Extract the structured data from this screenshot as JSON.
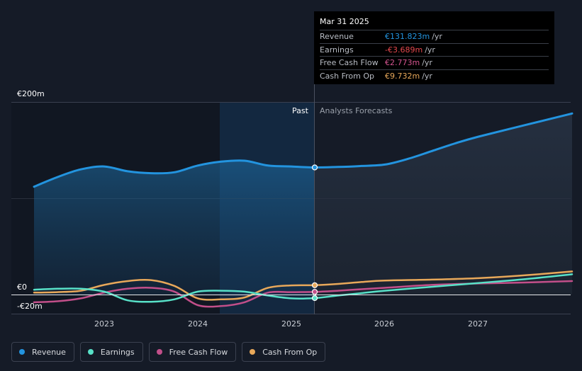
{
  "chart_data": {
    "type": "line",
    "y_axis": {
      "labels": [
        "€200m",
        "€0",
        "-€20m"
      ],
      "ylim": [
        -20,
        200
      ]
    },
    "x_axis": {
      "ticks": [
        "2023",
        "2024",
        "2025",
        "2026",
        "2027"
      ]
    },
    "regions": {
      "past": "Past",
      "forecast": "Analysts Forecasts"
    },
    "series": [
      {
        "name": "Revenue",
        "color": "#2394df",
        "points": [
          [
            2022.25,
            112
          ],
          [
            2022.5,
            122
          ],
          [
            2022.75,
            130
          ],
          [
            2023.0,
            133
          ],
          [
            2023.25,
            128
          ],
          [
            2023.5,
            126
          ],
          [
            2023.75,
            127
          ],
          [
            2024.0,
            134
          ],
          [
            2024.25,
            138
          ],
          [
            2024.5,
            139
          ],
          [
            2024.75,
            134
          ],
          [
            2025.0,
            133
          ],
          [
            2025.25,
            132
          ],
          [
            2025.5,
            132.5
          ],
          [
            2025.75,
            133.5
          ],
          [
            2026.0,
            135
          ],
          [
            2026.25,
            141
          ],
          [
            2026.5,
            149
          ],
          [
            2026.75,
            157
          ],
          [
            2027.0,
            164
          ],
          [
            2027.5,
            176
          ],
          [
            2028.0,
            188
          ]
        ]
      },
      {
        "name": "Earnings",
        "color": "#58e1c8",
        "points": [
          [
            2022.25,
            5
          ],
          [
            2022.5,
            6
          ],
          [
            2022.75,
            6
          ],
          [
            2023.0,
            3
          ],
          [
            2023.25,
            -6
          ],
          [
            2023.5,
            -7.5
          ],
          [
            2023.75,
            -5
          ],
          [
            2024.0,
            3
          ],
          [
            2024.25,
            4
          ],
          [
            2024.5,
            3
          ],
          [
            2024.75,
            -1
          ],
          [
            2025.0,
            -4
          ],
          [
            2025.25,
            -3.7
          ],
          [
            2025.5,
            -1
          ],
          [
            2025.75,
            1.5
          ],
          [
            2026.0,
            4
          ],
          [
            2026.5,
            8
          ],
          [
            2027.0,
            12
          ],
          [
            2027.5,
            16
          ],
          [
            2028.0,
            21
          ]
        ]
      },
      {
        "name": "Free Cash Flow",
        "color": "#c24f8a",
        "points": [
          [
            2022.25,
            -8
          ],
          [
            2022.5,
            -7
          ],
          [
            2022.75,
            -4
          ],
          [
            2023.0,
            2
          ],
          [
            2023.25,
            6
          ],
          [
            2023.5,
            7
          ],
          [
            2023.75,
            3
          ],
          [
            2024.0,
            -11
          ],
          [
            2024.25,
            -12
          ],
          [
            2024.5,
            -8
          ],
          [
            2024.75,
            2
          ],
          [
            2025.0,
            2.5
          ],
          [
            2025.25,
            2.8
          ],
          [
            2025.5,
            4
          ],
          [
            2025.75,
            5.5
          ],
          [
            2026.0,
            7
          ],
          [
            2026.5,
            10
          ],
          [
            2027.0,
            11.5
          ],
          [
            2027.5,
            12.5
          ],
          [
            2028.0,
            14
          ]
        ]
      },
      {
        "name": "Cash From Op",
        "color": "#e8a85a",
        "points": [
          [
            2022.25,
            2
          ],
          [
            2022.5,
            2.5
          ],
          [
            2022.75,
            4
          ],
          [
            2023.0,
            10
          ],
          [
            2023.25,
            14
          ],
          [
            2023.5,
            15
          ],
          [
            2023.75,
            9
          ],
          [
            2024.0,
            -4
          ],
          [
            2024.25,
            -5
          ],
          [
            2024.5,
            -3
          ],
          [
            2024.75,
            7
          ],
          [
            2025.0,
            9.5
          ],
          [
            2025.25,
            9.7
          ],
          [
            2025.5,
            11
          ],
          [
            2025.75,
            13
          ],
          [
            2026.0,
            14.5
          ],
          [
            2026.5,
            15.5
          ],
          [
            2027.0,
            17
          ],
          [
            2027.5,
            20
          ],
          [
            2028.0,
            24
          ]
        ]
      }
    ],
    "highlight_x": 2025.25
  },
  "tooltip": {
    "date": "Mar 31 2025",
    "rows": [
      {
        "label": "Revenue",
        "value": "€131.823m",
        "unit": "/yr",
        "color": "#2394df"
      },
      {
        "label": "Earnings",
        "value": "-€3.689m",
        "unit": "/yr",
        "color": "#e5484d"
      },
      {
        "label": "Free Cash Flow",
        "value": "€2.773m",
        "unit": "/yr",
        "color": "#c24f8a"
      },
      {
        "label": "Cash From Op",
        "value": "€9.732m",
        "unit": "/yr",
        "color": "#e8a85a"
      }
    ]
  },
  "legend": [
    {
      "label": "Revenue",
      "color": "#2394df"
    },
    {
      "label": "Earnings",
      "color": "#58e1c8"
    },
    {
      "label": "Free Cash Flow",
      "color": "#c24f8a"
    },
    {
      "label": "Cash From Op",
      "color": "#e8a85a"
    }
  ]
}
